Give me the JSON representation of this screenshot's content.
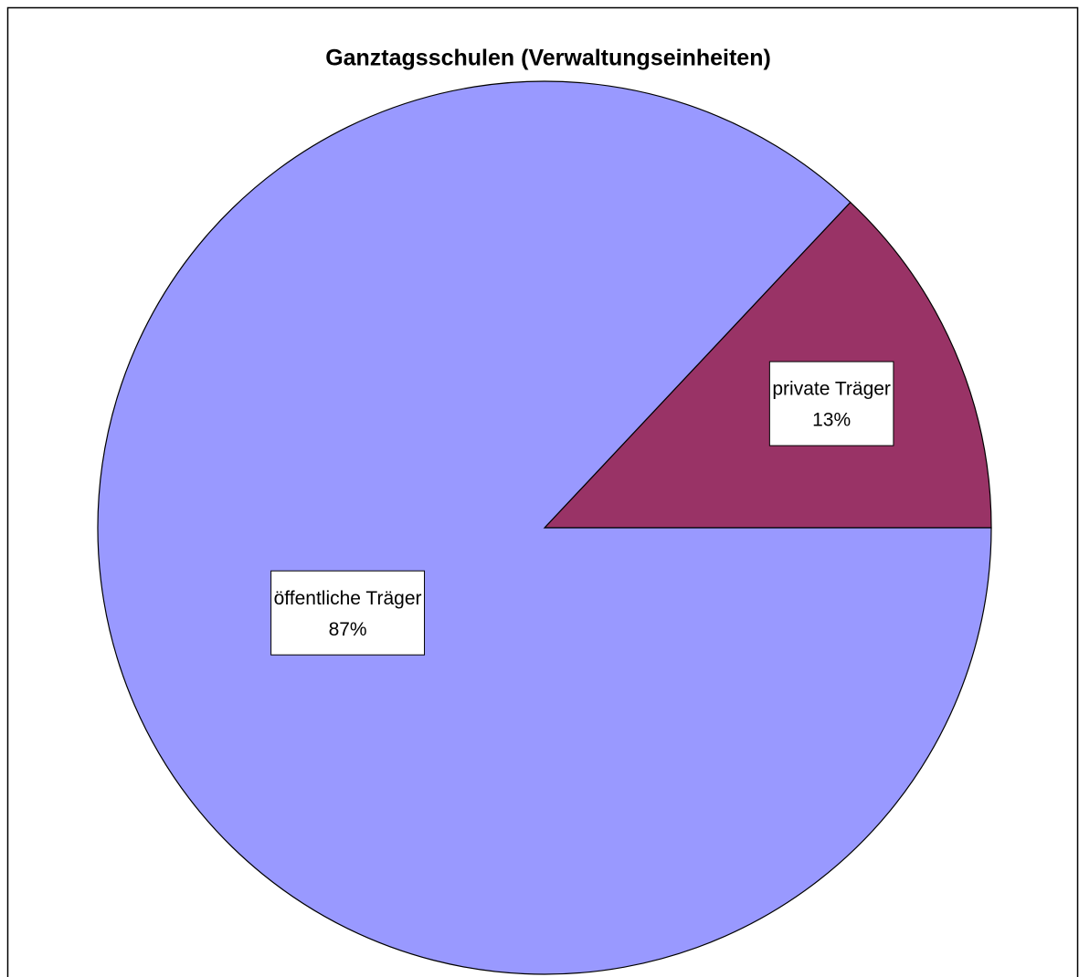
{
  "chart_data": {
    "type": "pie",
    "title": "Ganztagsschulen (Verwaltungseinheiten)",
    "categories": [
      "private Träger",
      "öffentliche Träger"
    ],
    "values": [
      13,
      87
    ],
    "value_labels": [
      "13%",
      "87%"
    ],
    "colors": [
      "#993366",
      "#9999ff"
    ]
  }
}
